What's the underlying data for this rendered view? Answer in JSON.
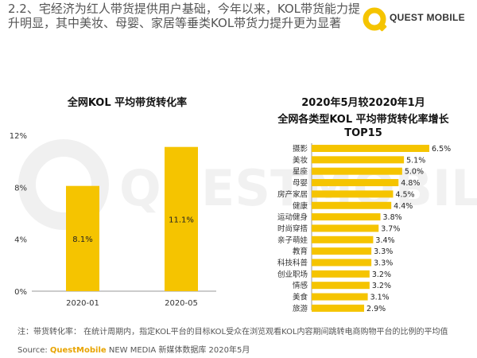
{
  "heading": "2.2、宅经济为红人带货提供用户基础，今年以来，KOL带货能力提升明显，其中美妆、母婴、家居等垂类KOL带货力提升更为显著",
  "logo": {
    "text": "QUEST MOBILE",
    "color": "#f5c400"
  },
  "watermark": {
    "text": "QUESTMOBILE"
  },
  "colors": {
    "bar": "#f5c400"
  },
  "chart_data": [
    {
      "type": "bar",
      "title": "全网KOL 平均带货转化率",
      "categories": [
        "2020-01",
        "2020-05"
      ],
      "values": [
        8.1,
        11.1
      ],
      "data_labels": [
        "8.1%",
        "11.1%"
      ],
      "yticks": [
        "0%",
        "4%",
        "8%",
        "12%"
      ],
      "ylim": [
        0,
        12
      ],
      "grid": false
    },
    {
      "type": "bar",
      "orientation": "horizontal",
      "title_lines": [
        "2020年5月较2020年1月",
        "全网各类型KOL 平均带货转化率增长",
        "TOP15"
      ],
      "categories": [
        "摄影",
        "美妆",
        "星座",
        "母婴",
        "房产家居",
        "健康",
        "运动健身",
        "时尚穿搭",
        "亲子萌娃",
        "教育",
        "科技科普",
        "创业职场",
        "情感",
        "美食",
        "旅游"
      ],
      "values": [
        6.5,
        5.1,
        5.0,
        4.8,
        4.5,
        4.4,
        3.8,
        3.7,
        3.4,
        3.3,
        3.3,
        3.2,
        3.2,
        3.1,
        2.9
      ],
      "data_labels": [
        "6.5%",
        "5.1%",
        "5.0%",
        "4.8%",
        "4.5%",
        "4.4%",
        "3.8%",
        "3.7%",
        "3.4%",
        "3.3%",
        "3.3%",
        "3.2%",
        "3.2%",
        "3.1%",
        "2.9%"
      ]
    }
  ],
  "note": "注：带货转化率：   在统计周期内，指定KOL平台的目标KOL受众在浏览观看KOL内容期间跳转电商购物平台的比例的平均值",
  "source": {
    "label": "Source:",
    "brand": "QuestMobile",
    "rest": "NEW MEDIA 新媒体数据库 2020年5月"
  }
}
